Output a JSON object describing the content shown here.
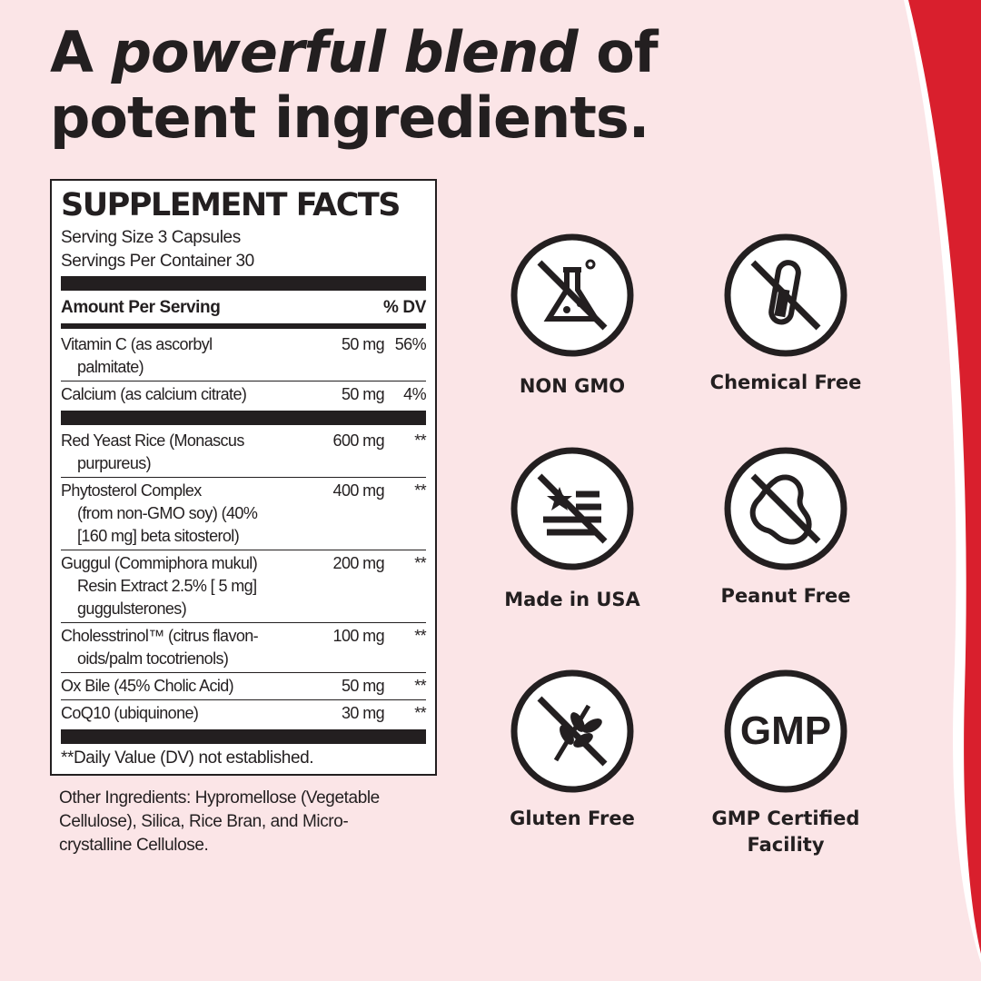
{
  "headline": {
    "part1": "A ",
    "emphasis": "powerful blend",
    "part2": " of",
    "line2": "potent ingredients."
  },
  "facts": {
    "title": "SUPPLEMENT FACTS",
    "serving_size": "Serving Size 3 Capsules",
    "servings_per_container": "Servings Per Container 30",
    "amount_header": "Amount Per Serving",
    "dv_header": "% DV",
    "rows": [
      {
        "name": [
          "Vitamin C (as ascorbyl",
          "palmitate)"
        ],
        "amount": "50 mg",
        "dv": "56%"
      },
      {
        "name": [
          "Calcium (as calcium citrate)"
        ],
        "amount": "50 mg",
        "dv": "4%"
      },
      {
        "name": [
          "Red Yeast Rice (Monascus",
          "purpureus)"
        ],
        "amount": "600 mg",
        "dv": "**"
      },
      {
        "name": [
          "Phytosterol Complex",
          "(from non-GMO soy) (40%",
          "[160 mg] beta sitosterol)"
        ],
        "amount": "400 mg",
        "dv": "**"
      },
      {
        "name": [
          "Guggul (Commiphora mukul)",
          "Resin Extract 2.5% [ 5 mg]",
          "guggulsterones)"
        ],
        "amount": "200 mg",
        "dv": "**"
      },
      {
        "name": [
          "Cholesstrinol™ (citrus flavon-",
          "oids/palm tocotrienols)"
        ],
        "amount": "100 mg",
        "dv": "**"
      },
      {
        "name": [
          "Ox Bile (45% Cholic Acid)"
        ],
        "amount": "50 mg",
        "dv": "**"
      },
      {
        "name": [
          "CoQ10 (ubiquinone)"
        ],
        "amount": "30 mg",
        "dv": "**"
      }
    ],
    "footnote": "**Daily Value (DV) not established."
  },
  "other_ingredients": "Other Ingredients: Hypromellose (Vegetable Cellulose), Silica, Rice Bran, and Micro-crystalline Cellulose.",
  "badges": [
    {
      "icon": "flask-prohibited-icon",
      "label": "NON GMO"
    },
    {
      "icon": "test-tube-prohibited-icon",
      "label": "Chemical Free"
    },
    {
      "icon": "usa-flag-icon",
      "label": "Made in USA"
    },
    {
      "icon": "peanut-prohibited-icon",
      "label": "Peanut Free"
    },
    {
      "icon": "wheat-prohibited-icon",
      "label": "Gluten Free"
    },
    {
      "icon": "gmp-icon",
      "label": "GMP Certified Facility",
      "gmp_text": "GMP"
    }
  ],
  "colors": {
    "background": "#fbe5e7",
    "accent_red": "#d91f2d",
    "ink": "#231f20"
  }
}
